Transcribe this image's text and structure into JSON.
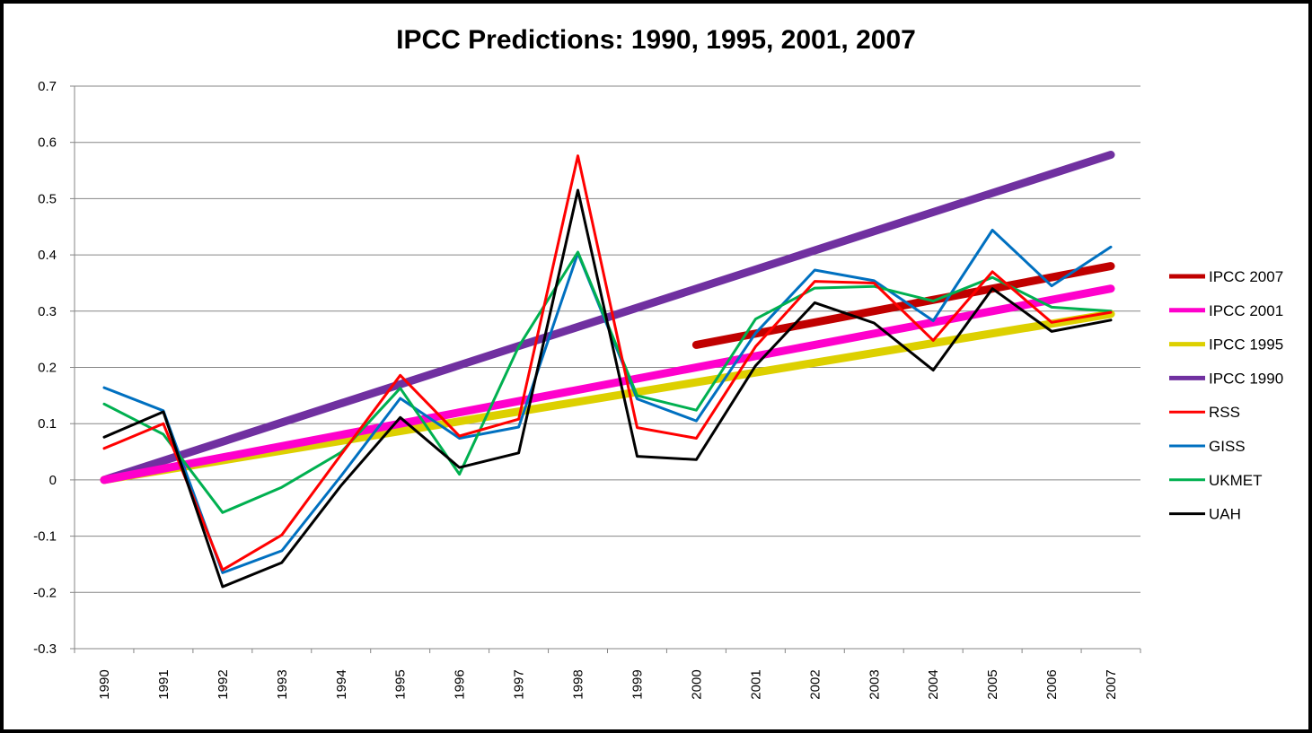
{
  "chart_data": {
    "type": "line",
    "title": "IPCC Predictions: 1990, 1995, 2001, 2007",
    "xlabel": "",
    "ylabel": "",
    "x": [
      "1990",
      "1991",
      "1992",
      "1993",
      "1994",
      "1995",
      "1996",
      "1997",
      "1998",
      "1999",
      "2000",
      "2001",
      "2002",
      "2003",
      "2004",
      "2005",
      "2006",
      "2007"
    ],
    "ylim": [
      -0.3,
      0.7
    ],
    "yticks": [
      "0.7",
      "0.6",
      "0.5",
      "0.4",
      "0.3",
      "0.2",
      "0.1",
      "0",
      "-0.1",
      "-0.2",
      "-0.3"
    ],
    "grid": true,
    "legend_position": "right",
    "series": [
      {
        "name": "IPCC 2007",
        "color": "#C00000",
        "width": 9,
        "x": [
          "2000",
          "2007"
        ],
        "values": [
          0.24,
          0.38
        ]
      },
      {
        "name": "IPCC 2001",
        "color": "#FF00CC",
        "width": 9,
        "x": [
          "1990",
          "2007"
        ],
        "values": [
          0.0,
          0.34
        ]
      },
      {
        "name": "IPCC 1995",
        "color": "#DDD000",
        "width": 9,
        "x": [
          "1990",
          "2007"
        ],
        "values": [
          0.0,
          0.295
        ]
      },
      {
        "name": "IPCC 1990",
        "color": "#7030A0",
        "width": 9,
        "x": [
          "1990",
          "2007"
        ],
        "values": [
          0.0,
          0.578
        ]
      },
      {
        "name": "RSS",
        "color": "#FF0000",
        "width": 3,
        "values": [
          0.056,
          0.1,
          -0.16,
          -0.098,
          0.045,
          0.186,
          0.078,
          0.108,
          0.576,
          0.093,
          0.074,
          0.237,
          0.353,
          0.35,
          0.248,
          0.37,
          0.28,
          0.298
        ]
      },
      {
        "name": "GISS",
        "color": "#0070C0",
        "width": 3,
        "values": [
          0.164,
          0.123,
          -0.165,
          -0.126,
          0.007,
          0.145,
          0.074,
          0.094,
          0.403,
          0.144,
          0.105,
          0.261,
          0.373,
          0.354,
          0.283,
          0.444,
          0.345,
          0.414
        ]
      },
      {
        "name": "UKMET",
        "color": "#00B050",
        "width": 3,
        "values": [
          0.135,
          0.081,
          -0.058,
          -0.013,
          0.049,
          0.163,
          0.01,
          0.237,
          0.405,
          0.15,
          0.124,
          0.286,
          0.341,
          0.344,
          0.318,
          0.36,
          0.307,
          0.3
        ]
      },
      {
        "name": "UAH",
        "color": "#000000",
        "width": 3,
        "values": [
          0.076,
          0.121,
          -0.19,
          -0.147,
          -0.01,
          0.111,
          0.022,
          0.048,
          0.515,
          0.042,
          0.036,
          0.203,
          0.315,
          0.279,
          0.195,
          0.34,
          0.264,
          0.284
        ]
      }
    ]
  }
}
